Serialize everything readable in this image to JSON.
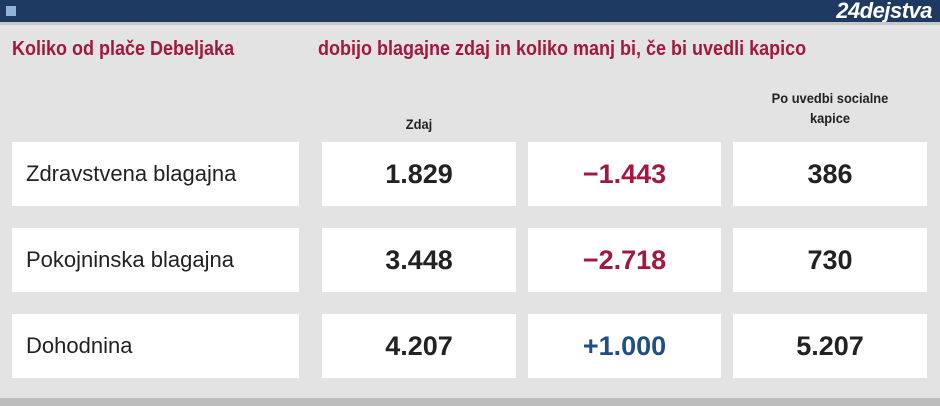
{
  "header": {
    "logo": "24dejstva"
  },
  "title": {
    "left": "Koliko od plače Debeljaka",
    "right": "dobijo blagajne zdaj in koliko manj bi, če bi uvedli kapico"
  },
  "column_headers": {
    "now": "Zdaj",
    "after": "Po uvedbi socialne kapice"
  },
  "table": {
    "rows": [
      {
        "label": "Zdravstvena blagajna",
        "now": "1.829",
        "change": {
          "text": "−1.443",
          "color": "#a3183f"
        },
        "after": "386"
      },
      {
        "label": "Pokojninska blagajna",
        "now": "3.448",
        "change": {
          "text": "−2.718",
          "color": "#a3183f"
        },
        "after": "730"
      },
      {
        "label": "Dohodnina",
        "now": "4.207",
        "change": {
          "text": "+1.000",
          "color": "#1f4f85"
        },
        "after": "5.207"
      }
    ]
  }
}
